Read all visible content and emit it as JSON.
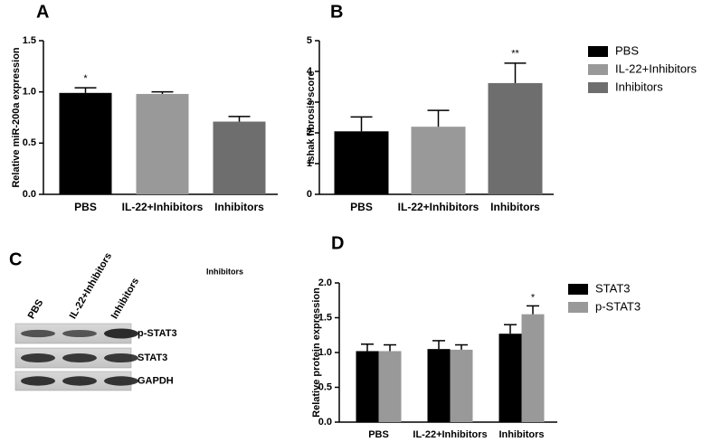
{
  "chart_data": [
    {
      "type": "bar",
      "label": "A",
      "ylabel": "Relative miR-200a expression",
      "categories": [
        "PBS",
        "IL-22+Inhibitors",
        "Inhibitors"
      ],
      "values": [
        0.99,
        0.98,
        0.71
      ],
      "errors": [
        0.05,
        0.02,
        0.05
      ],
      "colors": [
        "#000000",
        "#999999",
        "#6e6e6e"
      ],
      "value_labels": [
        "*",
        null,
        null
      ],
      "ylim": [
        0,
        1.5
      ],
      "yticks": [
        {
          "value": 0,
          "label": "0.0"
        },
        {
          "value": 0.5,
          "label": "0.5"
        },
        {
          "value": 1,
          "label": "1.0"
        },
        {
          "value": 1.5,
          "label": "1.5"
        }
      ]
    },
    {
      "type": "bar",
      "label": "B",
      "ylabel": "Ishak fibrosis score",
      "categories": [
        "PBS",
        "IL-22+Inhibitors",
        "Inhibitors"
      ],
      "values": [
        2.05,
        2.2,
        3.62
      ],
      "errors": [
        0.47,
        0.53,
        0.65
      ],
      "colors": [
        "#000000",
        "#999999",
        "#6e6e6e"
      ],
      "value_labels": [
        null,
        null,
        "**"
      ],
      "ylim": [
        0,
        5
      ],
      "yticks": [
        0,
        1,
        2,
        3,
        4,
        5
      ],
      "legend": "right"
    },
    {
      "type": "blot",
      "label": "C",
      "lanes": [
        "PBS",
        "IL-22+Inhibitors",
        "Inhibitors"
      ],
      "rows": [
        "p-STAT3",
        "STAT3",
        "GAPDH"
      ],
      "note": "Inhibitors"
    },
    {
      "type": "grouped",
      "label": "D",
      "ylabel": "Relative protein expression",
      "categories": [
        "PBS",
        "IL-22+Inhibitors",
        "Inhibitors"
      ],
      "series": [
        {
          "name": "STAT3",
          "color": "#000000",
          "values": [
            1.02,
            1.05,
            1.27
          ],
          "errors": [
            0.1,
            0.12,
            0.13
          ],
          "value_labels": [
            null,
            null,
            null
          ]
        },
        {
          "name": "p-STAT3",
          "color": "#999999",
          "values": [
            1.02,
            1.04,
            1.55
          ],
          "errors": [
            0.09,
            0.07,
            0.12
          ],
          "value_labels": [
            null,
            null,
            "*"
          ]
        }
      ],
      "ylim": [
        0,
        2
      ],
      "yticks": [
        {
          "value": 0,
          "label": "0.0"
        },
        {
          "value": 0.5,
          "label": "0.5"
        },
        {
          "value": 1,
          "label": "1.0"
        },
        {
          "value": 1.5,
          "label": "1.5"
        },
        {
          "value": 2,
          "label": "2.0"
        }
      ],
      "legend": "right"
    }
  ]
}
